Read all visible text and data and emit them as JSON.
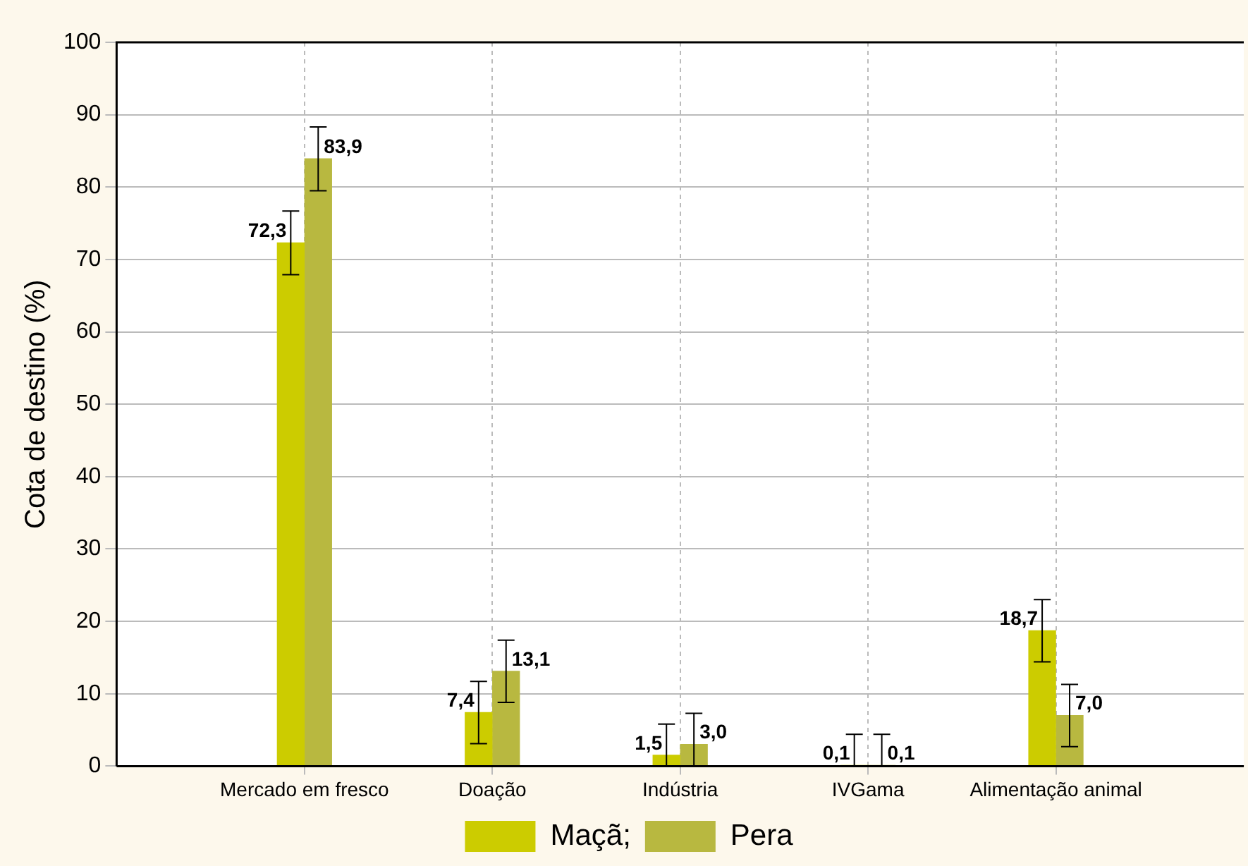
{
  "chart_data": {
    "type": "bar",
    "ylabel": "Cota de destino (%)",
    "categories": [
      "Mercado em fresco",
      "Doação",
      "Indústria",
      "IVGama",
      "Alimentação animal"
    ],
    "series": [
      {
        "name": "Maçã;",
        "color": "#cccc00",
        "values": [
          72.3,
          7.4,
          1.5,
          0.1,
          18.7
        ],
        "value_labels": [
          "72,3",
          "7,4",
          "1,5",
          "0,1",
          "18,7"
        ],
        "errors": [
          [
            67.9,
            76.7
          ],
          [
            3.1,
            11.7
          ],
          [
            0,
            5.8
          ],
          [
            0,
            4.4
          ],
          [
            14.4,
            23.0
          ]
        ]
      },
      {
        "name": "Pera",
        "color": "#b8b840",
        "values": [
          83.9,
          13.1,
          3.0,
          0.1,
          7.0
        ],
        "value_labels": [
          "83,9",
          "13,1",
          "3,0",
          "0,1",
          "7,0"
        ],
        "errors": [
          [
            79.5,
            88.3
          ],
          [
            8.8,
            17.4
          ],
          [
            0,
            7.3
          ],
          [
            0,
            4.4
          ],
          [
            2.7,
            11.3
          ]
        ]
      }
    ],
    "ylim": [
      0,
      100
    ],
    "yticks": [
      0,
      10,
      20,
      30,
      40,
      50,
      60,
      70,
      80,
      90,
      100
    ],
    "grid": true,
    "legend": "bottom"
  }
}
